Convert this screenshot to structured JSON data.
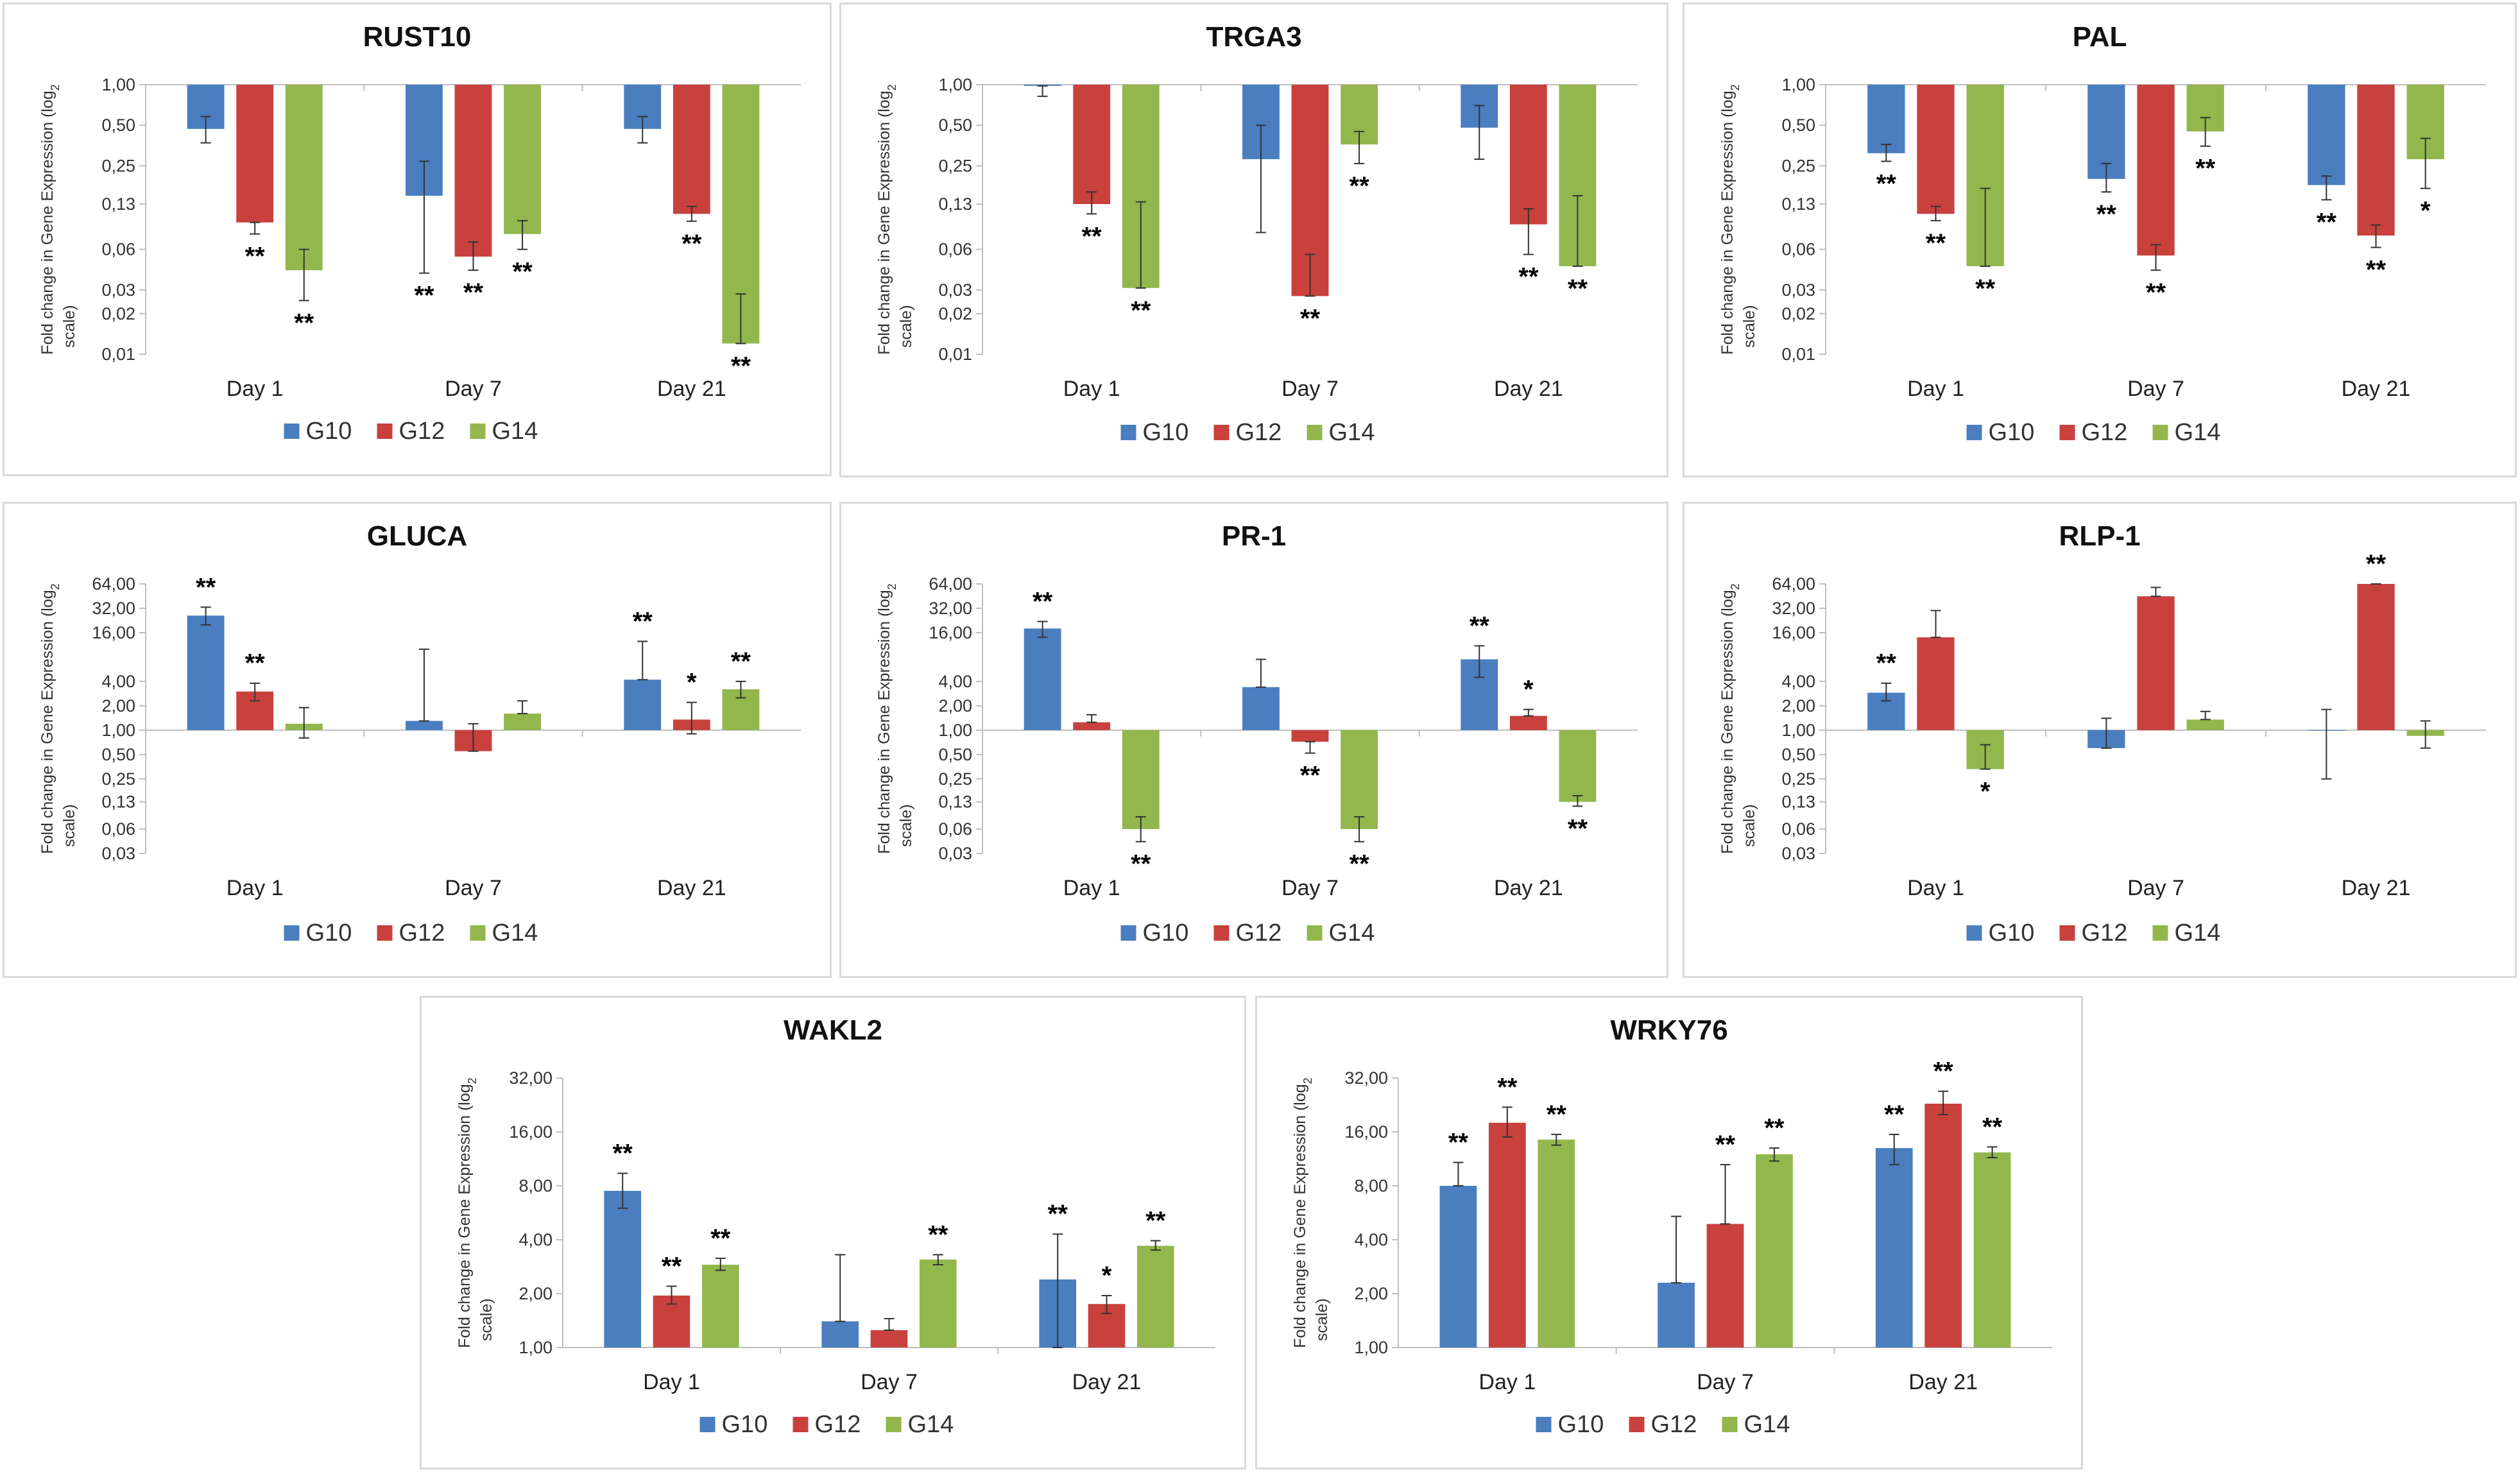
{
  "figure": {
    "series_names": [
      "G10",
      "G12",
      "G14"
    ],
    "series_colors": [
      "#4a7ebf",
      "#c8413d",
      "#92b74d"
    ],
    "y_axis_label": "Fold change in Gene Expression (log",
    "y_axis_label_sub": "2",
    "y_axis_label_end": "scale)"
  },
  "chart_data": [
    {
      "type": "bar",
      "title": "RUST10",
      "categories": [
        "Day 1",
        "Day 7",
        "Day 21"
      ],
      "ylabel": "Fold change in Gene Expression (log2 scale)",
      "yscale": "log2",
      "ylim": [
        0.01,
        1
      ],
      "yticks": [
        1,
        0.5,
        0.25,
        0.13,
        0.06,
        0.03,
        0.02,
        0.01
      ],
      "ytick_labels": [
        "1,00",
        "0,50",
        "0,25",
        "0,13",
        "0,06",
        "0,03",
        "0,02",
        "0,01"
      ],
      "series": [
        {
          "name": "G10",
          "values": [
            0.47,
            0.15,
            0.47
          ],
          "err_low": [
            0.37,
            0.04,
            0.37
          ],
          "err_high": [
            0.58,
            0.27,
            0.58
          ],
          "sig": [
            "",
            "**",
            ""
          ]
        },
        {
          "name": "G12",
          "values": [
            0.095,
            0.053,
            0.11
          ],
          "err_low": [
            0.078,
            0.042,
            0.097
          ],
          "err_high": [
            0.095,
            0.068,
            0.125
          ],
          "sig": [
            "**",
            "**",
            "**"
          ]
        },
        {
          "name": "G14",
          "values": [
            0.042,
            0.078,
            0.012
          ],
          "err_low": [
            0.025,
            0.06,
            0.012
          ],
          "err_high": [
            0.06,
            0.098,
            0.028
          ],
          "sig": [
            "**",
            "**",
            "**"
          ]
        }
      ]
    },
    {
      "type": "bar",
      "title": "TRGA3",
      "categories": [
        "Day 1",
        "Day 7",
        "Day 21"
      ],
      "ylabel": "Fold change in Gene Expression (log2 scale)",
      "yscale": "log2",
      "ylim": [
        0.01,
        1
      ],
      "yticks": [
        1,
        0.5,
        0.25,
        0.13,
        0.06,
        0.03,
        0.02,
        0.01
      ],
      "ytick_labels": [
        "1,00",
        "0,50",
        "0,25",
        "0,13",
        "0,06",
        "0,03",
        "0,02",
        "0,01"
      ],
      "series": [
        {
          "name": "G10",
          "values": [
            0.98,
            0.28,
            0.48
          ],
          "err_low": [
            0.82,
            0.08,
            0.28
          ],
          "err_high": [
            0.98,
            0.5,
            0.7
          ],
          "sig": [
            "",
            "",
            ""
          ]
        },
        {
          "name": "G12",
          "values": [
            0.13,
            0.027,
            0.092
          ],
          "err_low": [
            0.11,
            0.027,
            0.055
          ],
          "err_high": [
            0.16,
            0.055,
            0.12
          ],
          "sig": [
            "**",
            "**",
            "**"
          ]
        },
        {
          "name": "G14",
          "values": [
            0.031,
            0.36,
            0.045
          ],
          "err_low": [
            0.031,
            0.26,
            0.045
          ],
          "err_high": [
            0.135,
            0.45,
            0.15
          ],
          "sig": [
            "**",
            "**",
            "**"
          ]
        }
      ]
    },
    {
      "type": "bar",
      "title": "PAL",
      "categories": [
        "Day 1",
        "Day 7",
        "Day 21"
      ],
      "ylabel": "Fold change in Gene Expression (log2 scale)",
      "yscale": "log2",
      "ylim": [
        0.01,
        1
      ],
      "yticks": [
        1,
        0.5,
        0.25,
        0.13,
        0.06,
        0.03,
        0.02,
        0.01
      ],
      "ytick_labels": [
        "1,00",
        "0,50",
        "0,25",
        "0,13",
        "0,06",
        "0,03",
        "0,02",
        "0,01"
      ],
      "series": [
        {
          "name": "G10",
          "values": [
            0.31,
            0.2,
            0.18
          ],
          "err_low": [
            0.27,
            0.16,
            0.14
          ],
          "err_high": [
            0.36,
            0.26,
            0.21
          ],
          "sig": [
            "**",
            "**",
            "**"
          ]
        },
        {
          "name": "G12",
          "values": [
            0.11,
            0.054,
            0.076
          ],
          "err_low": [
            0.098,
            0.042,
            0.062
          ],
          "err_high": [
            0.125,
            0.065,
            0.091
          ],
          "sig": [
            "**",
            "**",
            "**"
          ]
        },
        {
          "name": "G14",
          "values": [
            0.045,
            0.45,
            0.28
          ],
          "err_low": [
            0.045,
            0.35,
            0.17
          ],
          "err_high": [
            0.17,
            0.57,
            0.4
          ],
          "sig": [
            "**",
            "**",
            "*"
          ]
        }
      ]
    },
    {
      "type": "bar",
      "title": "GLUCA",
      "categories": [
        "Day 1",
        "Day 7",
        "Day 21"
      ],
      "ylabel": "Fold change in Gene Expression (log2 scale)",
      "yscale": "log2",
      "ylim": [
        0.03,
        64
      ],
      "yticks": [
        64,
        32,
        16,
        4,
        2,
        1,
        0.5,
        0.25,
        0.13,
        0.06,
        0.03
      ],
      "ytick_labels": [
        "64,00",
        "32,00",
        "16,00",
        "4,00",
        "2,00",
        "1,00",
        "0,50",
        "0,25",
        "0,13",
        "0,06",
        "0,03"
      ],
      "series": [
        {
          "name": "G10",
          "values": [
            26,
            1.3,
            4.2
          ],
          "err_low": [
            20,
            1.3,
            4.2
          ],
          "err_high": [
            33,
            10,
            12.5
          ],
          "sig": [
            "**",
            "",
            "**"
          ]
        },
        {
          "name": "G12",
          "values": [
            3,
            0.55,
            1.35
          ],
          "err_low": [
            2.3,
            0.55,
            0.9
          ],
          "err_high": [
            3.8,
            1.2,
            2.2
          ],
          "sig": [
            "**",
            "",
            "*"
          ]
        },
        {
          "name": "G14",
          "values": [
            1.2,
            1.6,
            3.2
          ],
          "err_low": [
            0.8,
            1.6,
            2.5
          ],
          "err_high": [
            1.9,
            2.3,
            4.0
          ],
          "sig": [
            "",
            "",
            "**"
          ]
        }
      ]
    },
    {
      "type": "bar",
      "title": "PR-1",
      "categories": [
        "Day 1",
        "Day 7",
        "Day 21"
      ],
      "ylabel": "Fold change in Gene Expression (log2 scale)",
      "yscale": "log2",
      "ylim": [
        0.03,
        64
      ],
      "yticks": [
        64,
        32,
        16,
        4,
        2,
        1,
        0.5,
        0.25,
        0.13,
        0.06,
        0.03
      ],
      "ytick_labels": [
        "64,00",
        "32,00",
        "16,00",
        "4,00",
        "2,00",
        "1,00",
        "0,50",
        "0,25",
        "0,13",
        "0,06",
        "0,03"
      ],
      "series": [
        {
          "name": "G10",
          "values": [
            18,
            3.4,
            7.5
          ],
          "err_low": [
            14,
            3.4,
            4.5
          ],
          "err_high": [
            22,
            7.5,
            11
          ],
          "sig": [
            "**",
            "",
            "**"
          ]
        },
        {
          "name": "G12",
          "values": [
            1.25,
            0.72,
            1.5
          ],
          "err_low": [
            1.25,
            0.52,
            1.5
          ],
          "err_high": [
            1.55,
            0.72,
            1.8
          ],
          "sig": [
            "",
            "**",
            "*"
          ]
        },
        {
          "name": "G14",
          "values": [
            0.06,
            0.06,
            0.13
          ],
          "err_low": [
            0.042,
            0.042,
            0.115
          ],
          "err_high": [
            0.085,
            0.085,
            0.155
          ],
          "sig": [
            "**",
            "**",
            "**"
          ]
        }
      ]
    },
    {
      "type": "bar",
      "title": "RLP-1",
      "categories": [
        "Day 1",
        "Day 7",
        "Day 21"
      ],
      "ylabel": "Fold change in Gene Expression (log2 scale)",
      "yscale": "log2",
      "ylim": [
        0.03,
        64
      ],
      "yticks": [
        64,
        32,
        16,
        4,
        2,
        1,
        0.5,
        0.25,
        0.13,
        0.06,
        0.03
      ],
      "ytick_labels": [
        "64,00",
        "32,00",
        "16,00",
        "4,00",
        "2,00",
        "1,00",
        "0,50",
        "0,25",
        "0,13",
        "0,06",
        "0,03"
      ],
      "series": [
        {
          "name": "G10",
          "values": [
            2.9,
            0.6,
            1.0
          ],
          "err_low": [
            2.3,
            0.6,
            0.25
          ],
          "err_high": [
            3.8,
            1.4,
            1.8
          ],
          "sig": [
            "**",
            "",
            ""
          ]
        },
        {
          "name": "G12",
          "values": [
            14,
            45,
            64
          ],
          "err_low": [
            14,
            45,
            64
          ],
          "err_high": [
            30,
            58,
            64
          ],
          "sig": [
            "",
            "",
            "**"
          ]
        },
        {
          "name": "G14",
          "values": [
            0.33,
            1.35,
            0.85
          ],
          "err_low": [
            0.33,
            1.35,
            0.6
          ],
          "err_high": [
            0.66,
            1.7,
            1.3
          ],
          "sig": [
            "*",
            "",
            ""
          ]
        }
      ]
    },
    {
      "type": "bar",
      "title": "WAKL2",
      "categories": [
        "Day 1",
        "Day 7",
        "Day 21"
      ],
      "ylabel": "Fold change in Gene Expression (log2 scale)",
      "yscale": "log2",
      "ylim": [
        1,
        32
      ],
      "yticks": [
        32,
        16,
        8,
        4,
        2,
        1
      ],
      "ytick_labels": [
        "32,00",
        "16,00",
        "8,00",
        "4,00",
        "2,00",
        "1,00"
      ],
      "series": [
        {
          "name": "G10",
          "values": [
            7.5,
            1.4,
            2.4
          ],
          "err_low": [
            6,
            1.4,
            1.0
          ],
          "err_high": [
            9.4,
            3.3,
            4.3
          ],
          "sig": [
            "**",
            "",
            "**"
          ]
        },
        {
          "name": "G12",
          "values": [
            1.95,
            1.25,
            1.75
          ],
          "err_low": [
            1.75,
            1.25,
            1.55
          ],
          "err_high": [
            2.2,
            1.45,
            1.95
          ],
          "sig": [
            "**",
            "",
            "*"
          ]
        },
        {
          "name": "G14",
          "values": [
            2.9,
            3.1,
            3.7
          ],
          "err_low": [
            2.7,
            2.9,
            3.5
          ],
          "err_high": [
            3.15,
            3.3,
            3.95
          ],
          "sig": [
            "**",
            "**",
            "**"
          ]
        }
      ]
    },
    {
      "type": "bar",
      "title": "WRKY76",
      "categories": [
        "Day 1",
        "Day 7",
        "Day 21"
      ],
      "ylabel": "Fold change in Gene Expression (log2 scale)",
      "yscale": "log2",
      "ylim": [
        1,
        32
      ],
      "yticks": [
        32,
        16,
        8,
        4,
        2,
        1
      ],
      "ytick_labels": [
        "32,00",
        "16,00",
        "8,00",
        "4,00",
        "2,00",
        "1,00"
      ],
      "series": [
        {
          "name": "G10",
          "values": [
            8,
            2.3,
            13
          ],
          "err_low": [
            8,
            2.3,
            10.5
          ],
          "err_high": [
            10.8,
            5.4,
            15.5
          ],
          "sig": [
            "**",
            "",
            "**"
          ]
        },
        {
          "name": "G12",
          "values": [
            18,
            4.9,
            23
          ],
          "err_low": [
            15,
            4.9,
            20
          ],
          "err_high": [
            22,
            10.5,
            27
          ],
          "sig": [
            "**",
            "**",
            "**"
          ]
        },
        {
          "name": "G14",
          "values": [
            14.5,
            12,
            12.3
          ],
          "err_low": [
            13.5,
            11,
            11.5
          ],
          "err_high": [
            15.5,
            13,
            13.2
          ],
          "sig": [
            "**",
            "**",
            "**"
          ]
        }
      ]
    }
  ]
}
